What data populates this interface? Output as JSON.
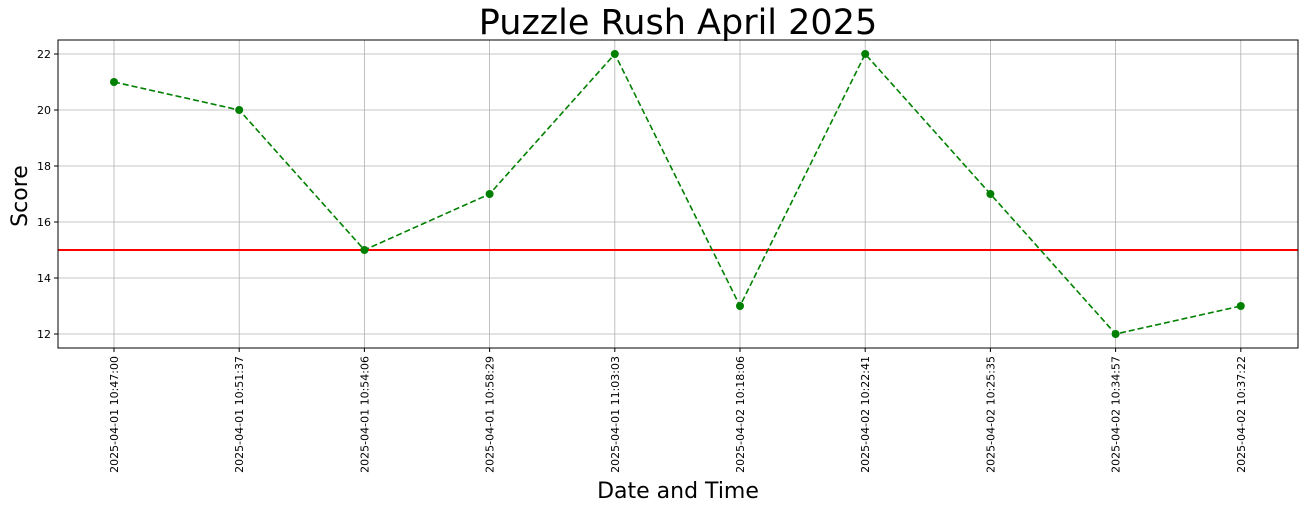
{
  "chart_data": {
    "type": "line",
    "title": "Puzzle Rush April 2025",
    "xlabel": "Date and Time",
    "ylabel": "Score",
    "x": [
      "2025-04-01 10:47:00",
      "2025-04-01 10:51:37",
      "2025-04-01 10:54:06",
      "2025-04-01 10:58:29",
      "2025-04-01 11:03:03",
      "2025-04-02 10:18:06",
      "2025-04-02 10:22:41",
      "2025-04-02 10:25:35",
      "2025-04-02 10:34:57",
      "2025-04-02 10:37:22"
    ],
    "series": [
      {
        "values": [
          21,
          20,
          15,
          17,
          22,
          13,
          22,
          17,
          12,
          13
        ],
        "color": "#008000",
        "line_style": "dashed",
        "marker": "circle"
      }
    ],
    "reference_line": {
      "y": 15,
      "color": "#ff0000"
    },
    "yticks": [
      12,
      14,
      16,
      18,
      20,
      22
    ],
    "ylim": [
      11.5,
      22.5
    ],
    "grid": true
  }
}
